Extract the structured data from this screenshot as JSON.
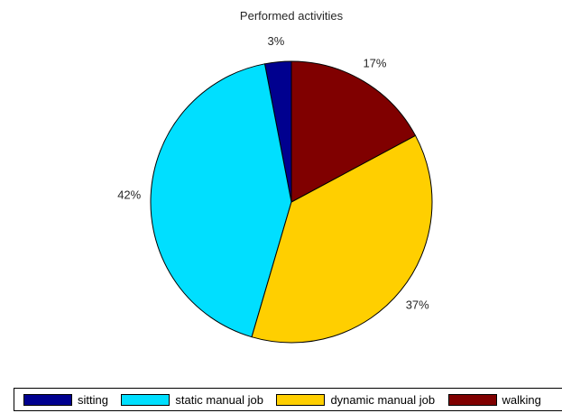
{
  "chart_data": {
    "type": "pie",
    "title": "Performed activities",
    "categories": [
      "sitting",
      "static manual job",
      "dynamic manual job",
      "walking"
    ],
    "values": [
      3,
      42,
      37,
      17
    ],
    "value_labels": [
      "3%",
      "42%",
      "37%",
      "17%"
    ],
    "colors": [
      "#00008f",
      "#00dfff",
      "#ffcf00",
      "#800000"
    ],
    "legend_position": "bottom",
    "grid": false
  }
}
